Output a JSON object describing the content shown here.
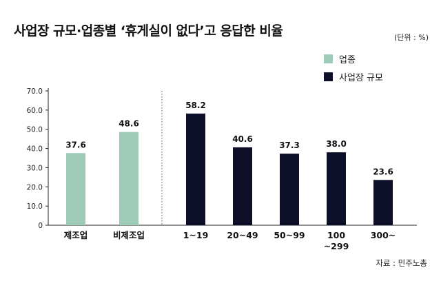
{
  "title": "사업장 규모·업종별 ‘휴게실이 없다’고 응답한 비율",
  "unit_note": "(단위 : %)",
  "source": "자료 : 민주노총",
  "legend": [
    {
      "label": "업종",
      "color": "#9dcbb8"
    },
    {
      "label": "사업장 규모",
      "color": "#0e0f28"
    }
  ],
  "chart_data": {
    "type": "bar",
    "title": "사업장 규모·업종별 ‘휴게실이 없다’고 응답한 비율",
    "ylabel": "",
    "xlabel": "",
    "ylim": [
      0,
      70
    ],
    "yticks": [
      "0",
      "10.0",
      "20.0",
      "30.0",
      "40.0",
      "50.0",
      "60.0",
      "70.0"
    ],
    "grid": false,
    "legend_position": "top-right",
    "groups": [
      {
        "name": "업종",
        "color": "#9dcbb8",
        "categories": [
          [
            "제조업"
          ],
          [
            "비제조업"
          ]
        ],
        "values": [
          37.6,
          48.6
        ],
        "labels": [
          "37.6",
          "48.6"
        ]
      },
      {
        "name": "사업장 규모",
        "color": "#0e0f28",
        "categories": [
          [
            "1~19"
          ],
          [
            "20~49"
          ],
          [
            "50~99"
          ],
          [
            "100",
            "~299"
          ],
          [
            "300~"
          ]
        ],
        "values": [
          58.2,
          40.6,
          37.3,
          38.0,
          23.6
        ],
        "labels": [
          "58.2",
          "40.6",
          "37.3",
          "38.0",
          "23.6"
        ]
      }
    ]
  }
}
